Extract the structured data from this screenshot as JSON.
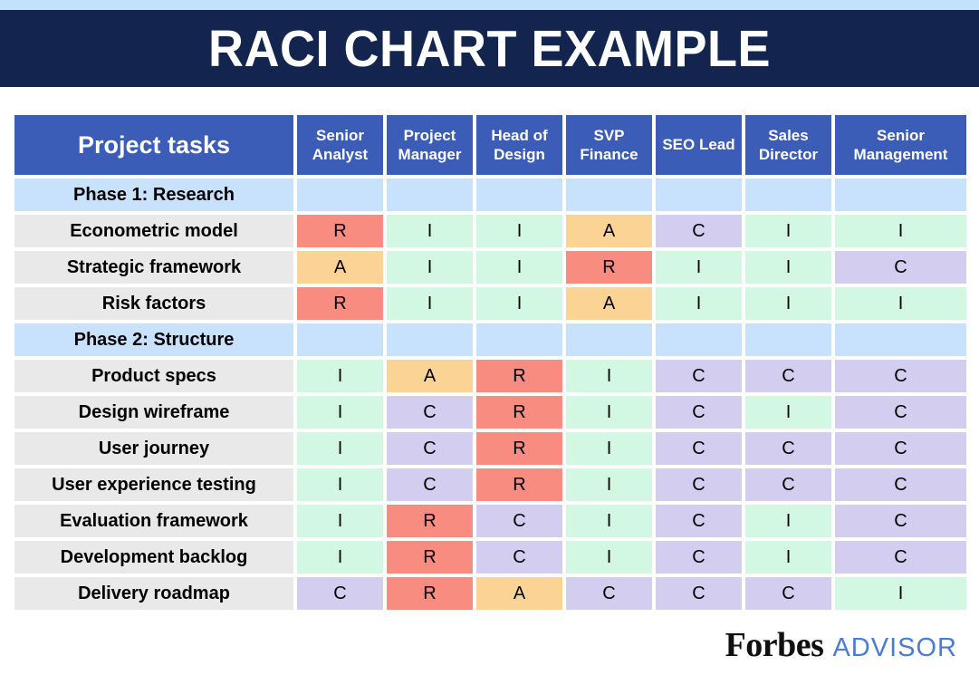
{
  "banner": {
    "title": "RACI CHART EXAMPLE"
  },
  "chart_data": {
    "type": "table",
    "title": "RACI CHART EXAMPLE",
    "task_column_header": "Project tasks",
    "role_columns": [
      "Senior Analyst",
      "Project Manager",
      "Head of Design",
      "SVP Finance",
      "SEO Lead",
      "Sales Director",
      "Senior Management"
    ],
    "rows": [
      {
        "type": "phase",
        "label": "Phase 1: Research"
      },
      {
        "type": "task",
        "label": "Econometric model",
        "values": [
          "R",
          "I",
          "I",
          "A",
          "C",
          "I",
          "I"
        ]
      },
      {
        "type": "task",
        "label": "Strategic framework",
        "values": [
          "A",
          "I",
          "I",
          "R",
          "I",
          "I",
          "C"
        ]
      },
      {
        "type": "task",
        "label": "Risk factors",
        "values": [
          "R",
          "I",
          "I",
          "A",
          "I",
          "I",
          "I"
        ]
      },
      {
        "type": "phase",
        "label": "Phase 2: Structure"
      },
      {
        "type": "task",
        "label": "Product specs",
        "values": [
          "I",
          "A",
          "R",
          "I",
          "C",
          "C",
          "C"
        ]
      },
      {
        "type": "task",
        "label": "Design wireframe",
        "values": [
          "I",
          "C",
          "R",
          "I",
          "C",
          "I",
          "C"
        ]
      },
      {
        "type": "task",
        "label": "User journey",
        "values": [
          "I",
          "C",
          "R",
          "I",
          "C",
          "C",
          "C"
        ]
      },
      {
        "type": "task",
        "label": "User experience testing",
        "values": [
          "I",
          "C",
          "R",
          "I",
          "C",
          "C",
          "C"
        ]
      },
      {
        "type": "task",
        "label": "Evaluation framework",
        "values": [
          "I",
          "R",
          "C",
          "I",
          "C",
          "I",
          "C"
        ]
      },
      {
        "type": "task",
        "label": "Development backlog",
        "values": [
          "I",
          "R",
          "C",
          "I",
          "C",
          "I",
          "C"
        ]
      },
      {
        "type": "task",
        "label": "Delivery roadmap",
        "values": [
          "C",
          "R",
          "A",
          "C",
          "C",
          "C",
          "I"
        ]
      }
    ],
    "value_colors": {
      "R": "#f98c80",
      "A": "#fbd394",
      "C": "#d3cdf0",
      "I": "#d2f8e4"
    }
  },
  "colors": {
    "top_strip": "#c3e1fc",
    "banner_navy": "#13254f",
    "header_blue": "#3b5db8",
    "phase_blue": "#c8e2fd",
    "task_gray": "#e9e9e9",
    "advisor_blue": "#4a7bd5"
  },
  "footer": {
    "brand": "Forbes",
    "suffix": "ADVISOR"
  }
}
